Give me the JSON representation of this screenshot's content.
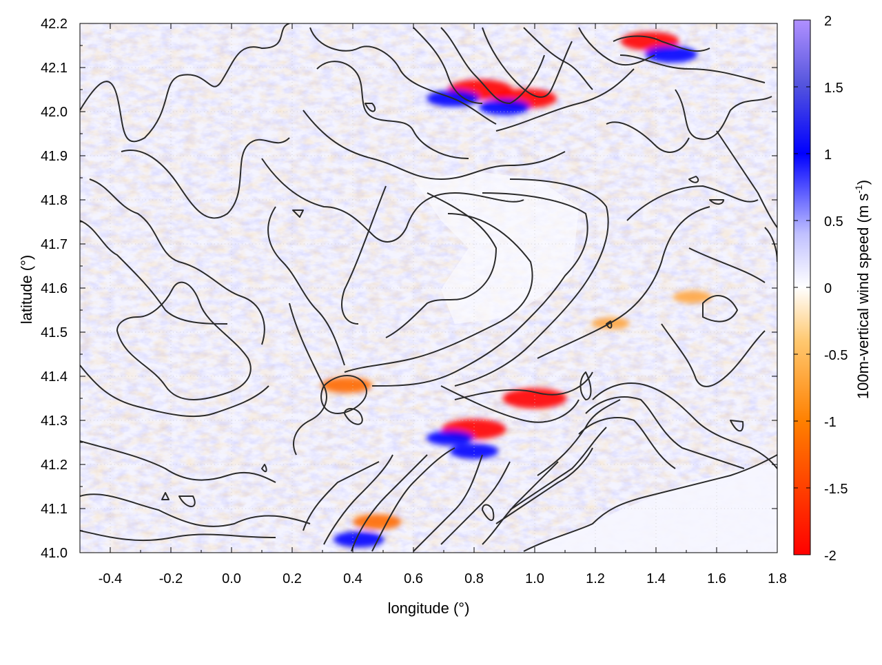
{
  "chart_data": {
    "type": "heatmap",
    "title": "",
    "xlabel": "longitude (°)",
    "ylabel": "latitude (°)",
    "xlim": [
      -0.5,
      1.8
    ],
    "ylim": [
      41.0,
      42.2
    ],
    "x_ticks": [
      "-0.4",
      "-0.2",
      "0.0",
      "0.2",
      "0.4",
      "0.6",
      "0.8",
      "1.0",
      "1.2",
      "1.4",
      "1.6",
      "1.8"
    ],
    "y_ticks": [
      "41.0",
      "41.1",
      "41.2",
      "41.3",
      "41.4",
      "41.5",
      "41.6",
      "41.7",
      "41.8",
      "41.9",
      "42.0",
      "42.1",
      "42.2"
    ],
    "colorbar": {
      "label": "100m-vertical wind speed (m s",
      "label_superscript": "-1",
      "label_close": ")",
      "range": [
        -2,
        2
      ],
      "ticks": [
        "2",
        "1.5",
        "1",
        "0.5",
        "0",
        "-0.5",
        "-1",
        "-1.5",
        "-2"
      ],
      "colors": [
        "#ff0000",
        "#ff7f00",
        "#ffa500",
        "#fffff0",
        "#ffffff",
        "#c8c8ff",
        "#0000ff",
        "#3333cc",
        "#a070ff"
      ]
    },
    "grid": true,
    "overlay": "terrain elevation contours (black)",
    "hotspots": [
      {
        "lon": 0.82,
        "lat": 42.05,
        "value": -1.9
      },
      {
        "lon": 0.97,
        "lat": 42.03,
        "value": -1.8
      },
      {
        "lon": 0.8,
        "lat": 41.28,
        "value": -1.9
      },
      {
        "lon": 1.0,
        "lat": 41.35,
        "value": -1.9
      },
      {
        "lon": 1.38,
        "lat": 42.16,
        "value": -1.6
      },
      {
        "lon": 0.73,
        "lat": 42.03,
        "value": 1.3
      },
      {
        "lon": 0.9,
        "lat": 42.01,
        "value": 1.2
      },
      {
        "lon": 1.45,
        "lat": 42.13,
        "value": 1.3
      },
      {
        "lon": 0.8,
        "lat": 41.23,
        "value": 1.1
      },
      {
        "lon": 0.72,
        "lat": 41.26,
        "value": 1.0
      },
      {
        "lon": 1.52,
        "lat": 41.58,
        "value": -0.6
      },
      {
        "lon": 1.25,
        "lat": 41.52,
        "value": -0.55
      },
      {
        "lon": 0.42,
        "lat": 41.03,
        "value": 1.2
      },
      {
        "lon": 0.38,
        "lat": 41.38,
        "value": -1.2
      },
      {
        "lon": 0.48,
        "lat": 41.07,
        "value": -1.1
      }
    ]
  }
}
